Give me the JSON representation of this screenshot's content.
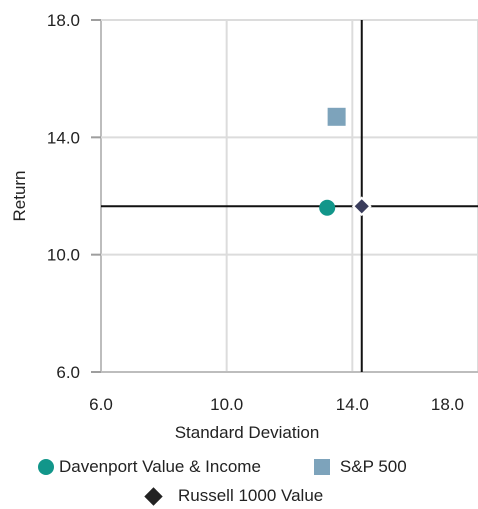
{
  "chart_data": {
    "type": "scatter",
    "title": "",
    "xlabel": "Standard Deviation",
    "ylabel": "Return",
    "xlim": [
      6.0,
      18.0
    ],
    "ylim": [
      6.0,
      18.0
    ],
    "x_ticks": [
      "6.0",
      "10.0",
      "14.0",
      "18.0"
    ],
    "y_ticks": [
      "6.0",
      "10.0",
      "14.0",
      "18.0"
    ],
    "grid": true,
    "legend_position": "bottom",
    "series": [
      {
        "name": "Davenport Value & Income",
        "marker": "circle",
        "color": "#12968a",
        "x": 13.2,
        "y": 11.6
      },
      {
        "name": "S&P 500",
        "marker": "square",
        "color": "#7da3bb",
        "x": 13.5,
        "y": 14.7
      },
      {
        "name": "Russell 1000 Value",
        "marker": "diamond",
        "color": "#3a3d5c",
        "x": 14.3,
        "y": 11.65
      }
    ],
    "crosshair": {
      "x": 14.3,
      "y": 11.65,
      "color": "#111111"
    }
  }
}
